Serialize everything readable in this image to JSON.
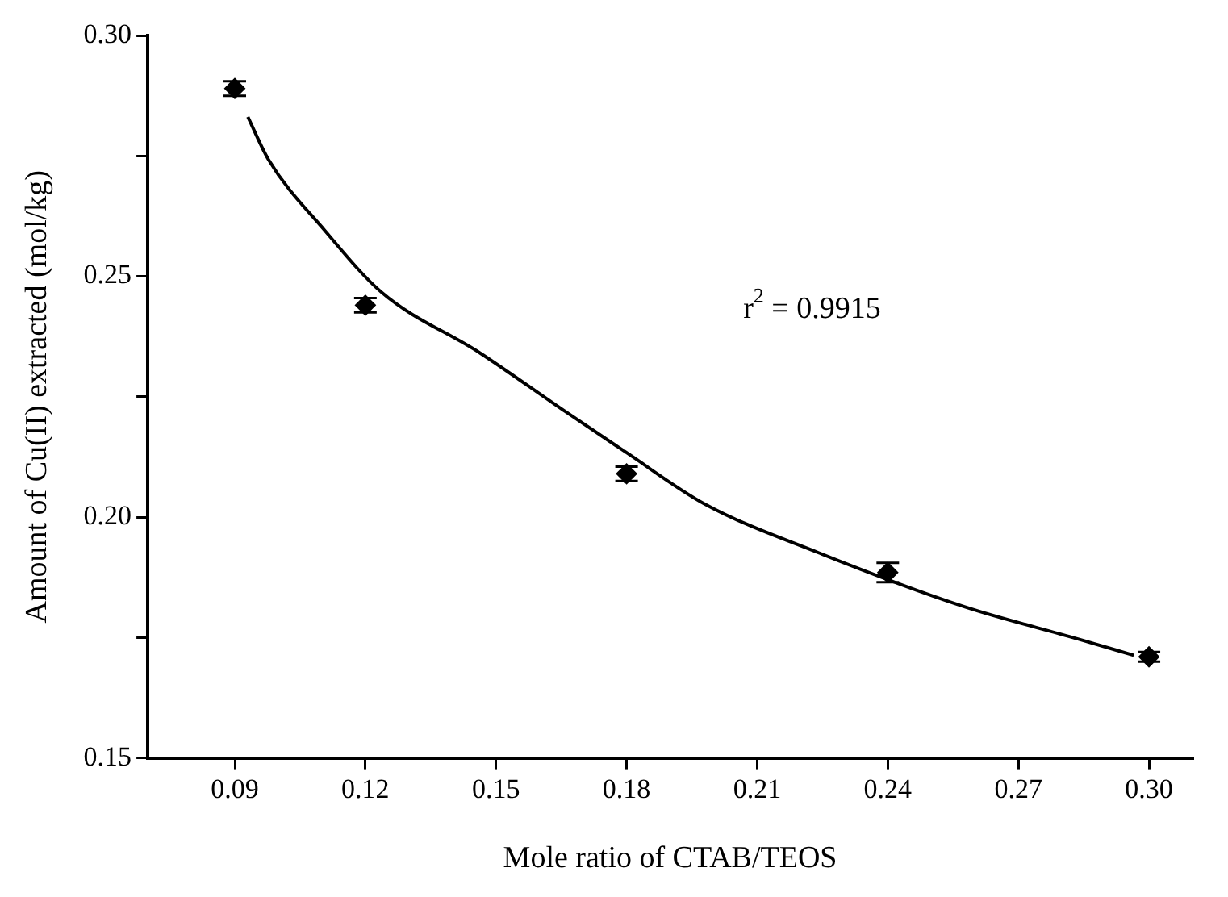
{
  "chart_data": {
    "type": "scatter",
    "xlabel": "Mole ratio of CTAB/TEOS",
    "ylabel": "Amount of Cu(II) extracted (mol/kg)",
    "annotations": [
      "r$^{2}$ = 0.9915"
    ],
    "x": [
      0.09,
      0.12,
      0.18,
      0.24,
      0.3
    ],
    "series": [
      {
        "color": "#000000",
        "marker": "diamond",
        "values": [
          0.289,
          0.244,
          0.209,
          0.1885,
          0.171
        ],
        "errors": [
          0.0015,
          0.0015,
          0.0015,
          0.002,
          0.001
        ]
      },
      {
        "type": "line",
        "color": "#000000",
        "marker": "none",
        "line_style": "solid",
        "x": [
          0.093,
          0.0977,
          0.1106,
          0.1237,
          0.1463,
          0.1658,
          0.1798,
          0.198,
          0.2241,
          0.2576,
          0.2837,
          0.2965
        ],
        "values": [
          0.2831,
          0.2743,
          0.2596,
          0.2467,
          0.2341,
          0.222,
          0.2135,
          0.2027,
          0.1926,
          0.1814,
          0.1747,
          0.1713
        ]
      }
    ],
    "xlim": [
      0.07,
      0.31
    ],
    "ylim": [
      0.15,
      0.3
    ],
    "xticks": [
      0.09,
      0.12,
      0.15,
      0.18,
      0.21,
      0.24,
      0.27,
      {
        "value": 0.3,
        "label": "0.30"
      }
    ],
    "yticks": [
      0.15,
      {
        "value": 0.175,
        "label": null
      },
      {
        "value": 0.2,
        "label": "0.20"
      },
      {
        "value": 0.225,
        "label": null
      },
      0.25,
      {
        "value": 0.275,
        "label": null
      },
      {
        "value": 0.3,
        "label": "0.30"
      }
    ],
    "grid": false,
    "legend": false
  }
}
